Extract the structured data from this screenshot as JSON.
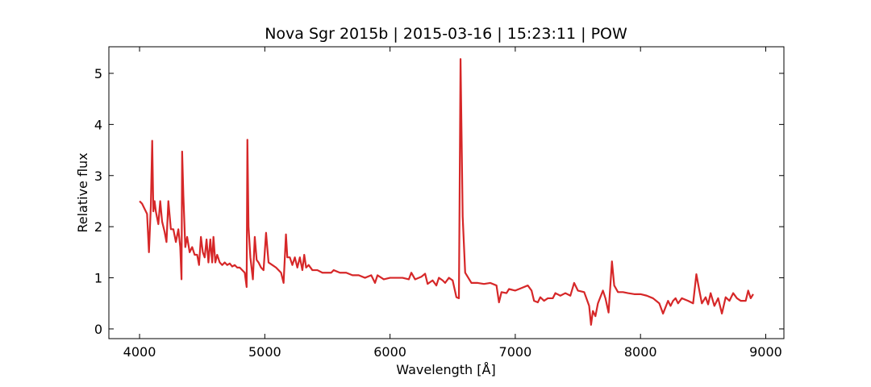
{
  "chart_data": {
    "type": "line",
    "title": "Nova Sgr 2015b | 2015-03-16 | 15:23:11 | POW",
    "xlabel": "Wavelength [Å]",
    "ylabel": "Relative flux",
    "color": "#d62728",
    "xlim": [
      3755,
      9145
    ],
    "ylim": [
      -0.19,
      5.52
    ],
    "xticks": [
      4000,
      5000,
      6000,
      7000,
      8000,
      9000
    ],
    "yticks": [
      0,
      1,
      2,
      3,
      4,
      5
    ],
    "x": [
      4000,
      4020,
      4040,
      4060,
      4075,
      4090,
      4101,
      4110,
      4120,
      4130,
      4150,
      4165,
      4180,
      4200,
      4215,
      4230,
      4250,
      4270,
      4290,
      4310,
      4325,
      4335,
      4340,
      4350,
      4365,
      4380,
      4400,
      4420,
      4440,
      4460,
      4475,
      4490,
      4505,
      4520,
      4535,
      4550,
      4565,
      4580,
      4590,
      4605,
      4620,
      4640,
      4660,
      4680,
      4700,
      4720,
      4740,
      4760,
      4780,
      4800,
      4840,
      4855,
      4861,
      4870,
      4885,
      4905,
      4920,
      4935,
      4950,
      4970,
      4990,
      5010,
      5030,
      5060,
      5090,
      5130,
      5150,
      5169,
      5180,
      5200,
      5220,
      5240,
      5260,
      5280,
      5300,
      5315,
      5330,
      5350,
      5380,
      5420,
      5460,
      5500,
      5530,
      5550,
      5600,
      5650,
      5700,
      5750,
      5800,
      5850,
      5880,
      5900,
      5950,
      6000,
      6050,
      6100,
      6150,
      6170,
      6200,
      6250,
      6280,
      6300,
      6340,
      6370,
      6390,
      6420,
      6440,
      6470,
      6500,
      6530,
      6550,
      6563,
      6580,
      6600,
      6650,
      6700,
      6750,
      6800,
      6850,
      6870,
      6890,
      6930,
      6950,
      7000,
      7050,
      7100,
      7130,
      7150,
      7180,
      7200,
      7230,
      7260,
      7300,
      7320,
      7360,
      7400,
      7440,
      7470,
      7500,
      7550,
      7590,
      7605,
      7620,
      7640,
      7660,
      7700,
      7720,
      7745,
      7772,
      7790,
      7820,
      7860,
      7900,
      7950,
      8000,
      8050,
      8100,
      8150,
      8180,
      8220,
      8240,
      8260,
      8280,
      8300,
      8330,
      8380,
      8420,
      8446,
      8470,
      8490,
      8520,
      8540,
      8560,
      8590,
      8620,
      8650,
      8680,
      8710,
      8740,
      8770,
      8800,
      8840,
      8860,
      8880,
      8900
    ],
    "values": [
      2.5,
      2.45,
      2.35,
      2.25,
      1.5,
      2.4,
      3.68,
      2.3,
      2.5,
      2.3,
      2.05,
      2.5,
      2.1,
      1.9,
      1.7,
      2.5,
      1.95,
      1.95,
      1.7,
      1.95,
      1.6,
      0.97,
      3.47,
      2.6,
      1.6,
      1.8,
      1.5,
      1.6,
      1.45,
      1.45,
      1.25,
      1.8,
      1.5,
      1.4,
      1.75,
      1.3,
      1.75,
      1.3,
      1.8,
      1.3,
      1.45,
      1.3,
      1.25,
      1.3,
      1.25,
      1.28,
      1.22,
      1.25,
      1.2,
      1.2,
      1.1,
      0.82,
      3.7,
      2.0,
      1.4,
      0.97,
      1.8,
      1.35,
      1.3,
      1.2,
      1.15,
      1.88,
      1.3,
      1.25,
      1.2,
      1.1,
      0.9,
      1.85,
      1.4,
      1.4,
      1.25,
      1.4,
      1.2,
      1.4,
      1.15,
      1.45,
      1.2,
      1.25,
      1.15,
      1.15,
      1.1,
      1.1,
      1.1,
      1.15,
      1.1,
      1.1,
      1.05,
      1.05,
      1.0,
      1.05,
      0.9,
      1.05,
      0.97,
      1.0,
      1.0,
      1.0,
      0.97,
      1.1,
      0.97,
      1.02,
      1.08,
      0.88,
      0.95,
      0.85,
      1.0,
      0.95,
      0.9,
      1.0,
      0.95,
      0.62,
      0.6,
      5.28,
      2.2,
      1.1,
      0.9,
      0.9,
      0.88,
      0.9,
      0.85,
      0.52,
      0.72,
      0.7,
      0.78,
      0.75,
      0.8,
      0.85,
      0.75,
      0.55,
      0.52,
      0.62,
      0.55,
      0.6,
      0.6,
      0.7,
      0.65,
      0.7,
      0.65,
      0.9,
      0.75,
      0.72,
      0.45,
      0.08,
      0.35,
      0.25,
      0.5,
      0.75,
      0.6,
      0.32,
      1.32,
      0.85,
      0.72,
      0.72,
      0.7,
      0.68,
      0.68,
      0.65,
      0.6,
      0.5,
      0.3,
      0.55,
      0.45,
      0.55,
      0.6,
      0.5,
      0.6,
      0.55,
      0.5,
      1.07,
      0.75,
      0.5,
      0.62,
      0.48,
      0.7,
      0.45,
      0.6,
      0.3,
      0.62,
      0.55,
      0.7,
      0.6,
      0.55,
      0.55,
      0.75,
      0.6,
      0.68
    ]
  }
}
